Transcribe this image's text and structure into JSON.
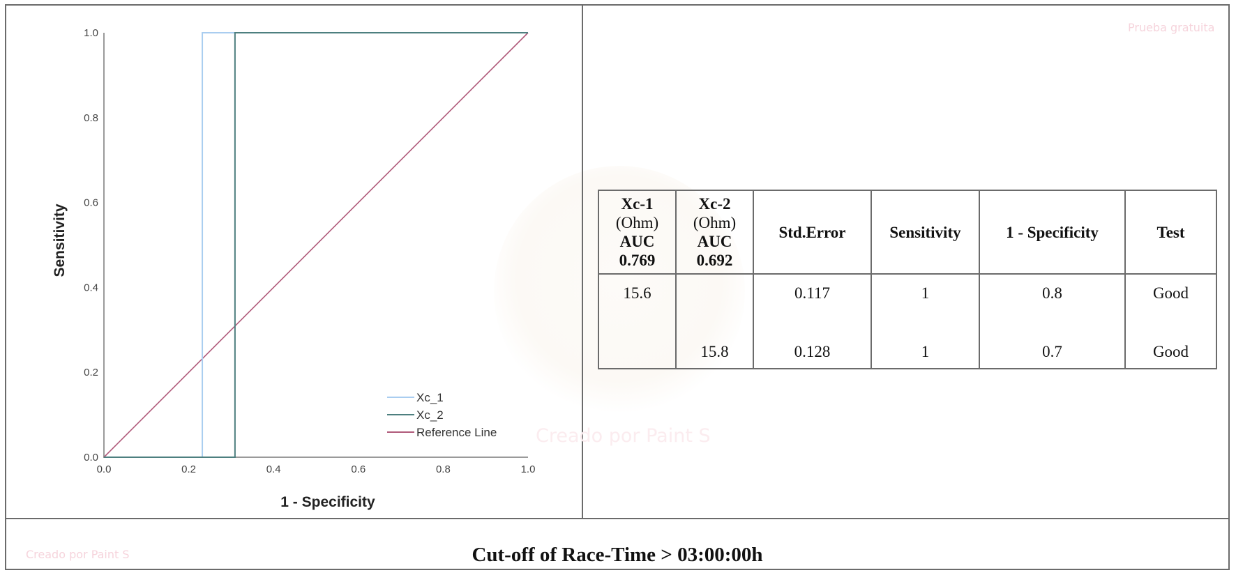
{
  "chart_data": {
    "type": "line",
    "title": "",
    "xlabel": "1 - Specificity",
    "ylabel": "Sensitivity",
    "xlim": [
      0.0,
      1.0
    ],
    "ylim": [
      0.0,
      1.0
    ],
    "x_ticks": [
      "0.0",
      "0.2",
      "0.4",
      "0.6",
      "0.8",
      "1.0"
    ],
    "y_ticks": [
      "0.0",
      "0.2",
      "0.4",
      "0.6",
      "0.8",
      "1.0"
    ],
    "grid": false,
    "legend_position": "lower right",
    "series": [
      {
        "name": "Xc_1",
        "color": "#a9cdf0",
        "x": [
          0.0,
          0.232,
          0.232,
          1.0
        ],
        "y": [
          0.0,
          0.0,
          1.0,
          1.0
        ]
      },
      {
        "name": "Xc_2",
        "color": "#4d7f7f",
        "x": [
          0.0,
          0.309,
          0.309,
          1.0
        ],
        "y": [
          0.0,
          0.0,
          1.0,
          1.0
        ]
      },
      {
        "name": "Reference Line",
        "color": "#b05a7a",
        "x": [
          0.0,
          1.0
        ],
        "y": [
          0.0,
          1.0
        ]
      }
    ]
  },
  "table": {
    "headers": [
      {
        "title": "Xc-1",
        "unit": "(Ohm)",
        "sub": "AUC",
        "value": "0.769"
      },
      {
        "title": "Xc-2",
        "unit": "(Ohm)",
        "sub": "AUC",
        "value": "0.692"
      },
      {
        "title": "Std.Error"
      },
      {
        "title": "Sensitivity"
      },
      {
        "title": "1 - Specificity"
      },
      {
        "title": "Test"
      }
    ],
    "rows": [
      [
        "15.6",
        "",
        "0.117",
        "1",
        "0.8",
        "Good"
      ],
      [
        "",
        "15.8",
        "0.128",
        "1",
        "0.7",
        "Good"
      ]
    ]
  },
  "caption": "Cut-off of Race-Time > 03:00:00h",
  "watermarks": {
    "top_right": "Prueba gratuita",
    "center": "Creado por Paint S",
    "bottom_left": "Creado por Paint S"
  }
}
